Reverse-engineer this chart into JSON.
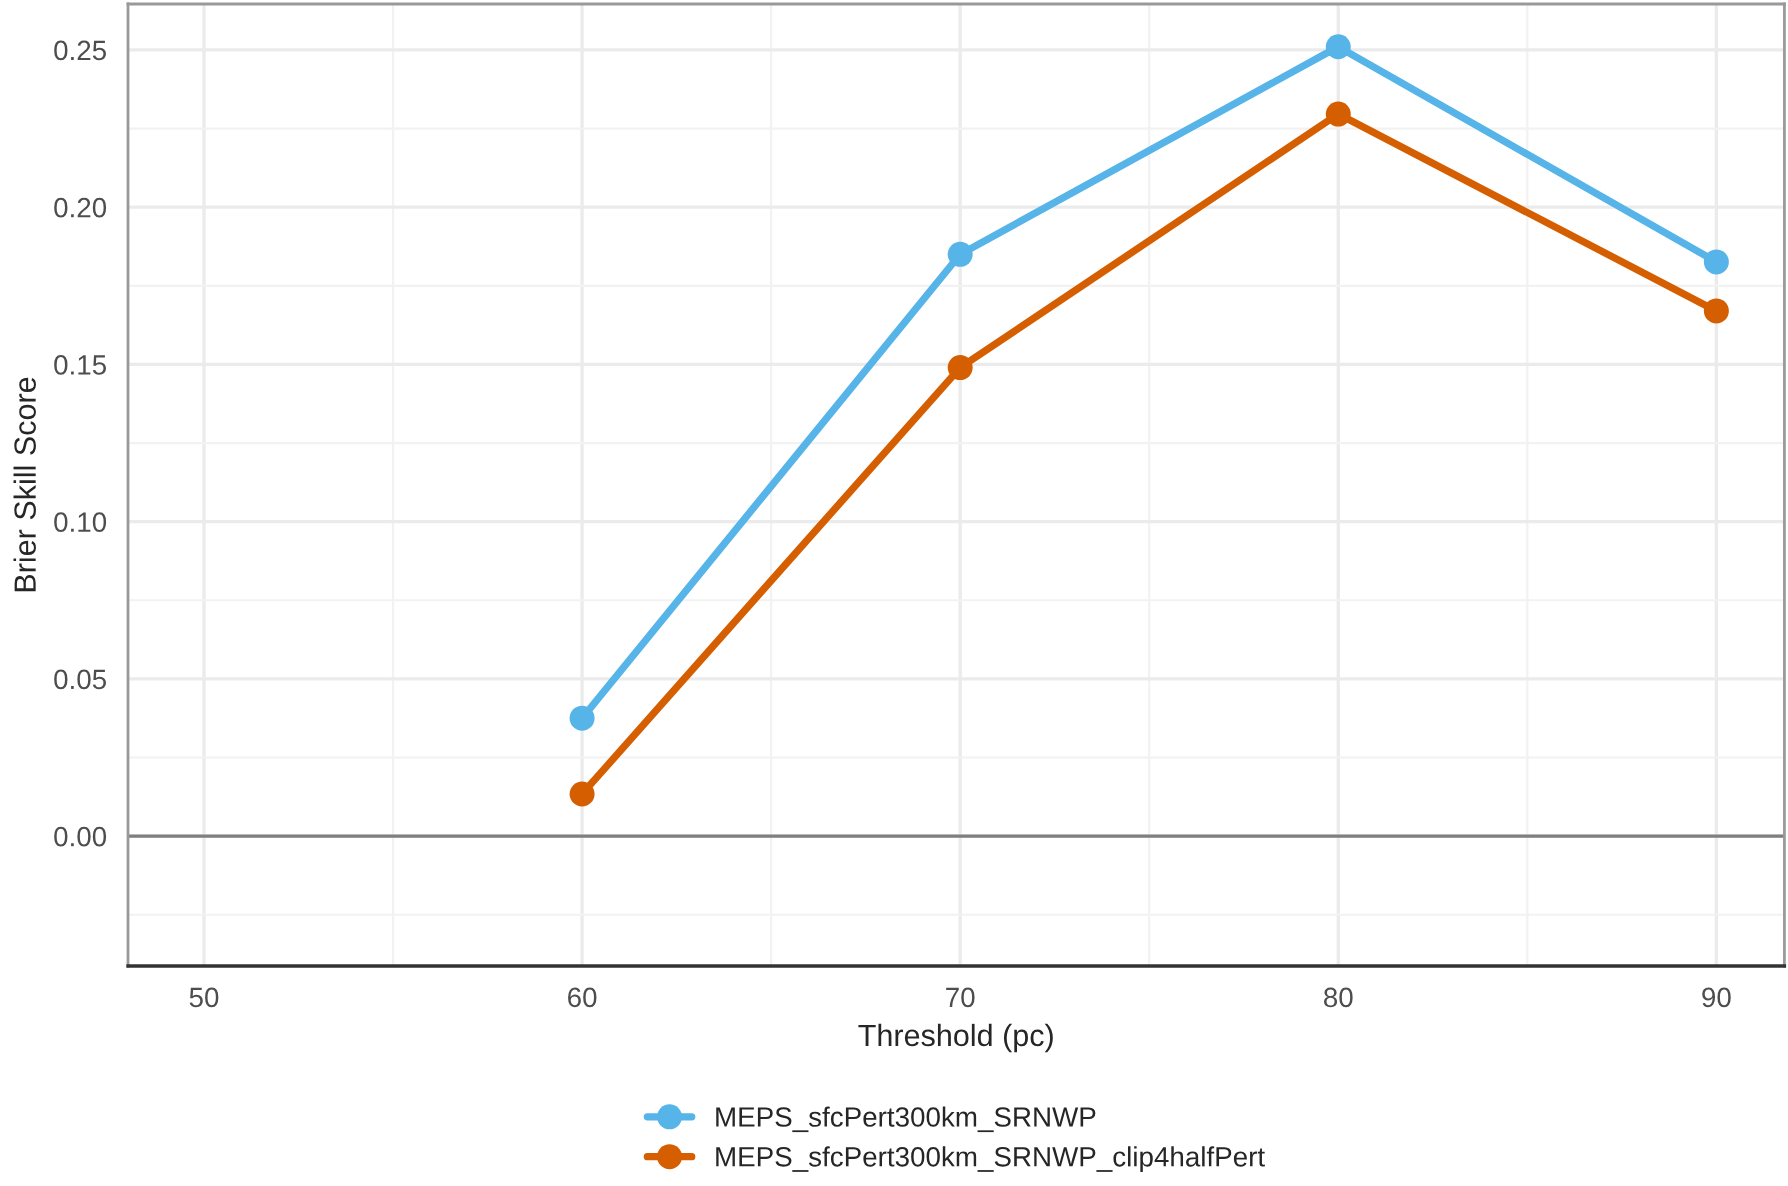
{
  "chart_data": {
    "type": "line",
    "xlabel": "Threshold (pc)",
    "ylabel": "Brier Skill Score",
    "x": [
      60,
      70,
      80,
      90
    ],
    "series": [
      {
        "name": "MEPS_sfcPert300km_SRNWP",
        "color": "#56b4e9",
        "values": [
          0.0375,
          0.185,
          0.251,
          0.1826
        ]
      },
      {
        "name": "MEPS_sfcPert300km_SRNWP_clip4halfPert",
        "color": "#d55e00",
        "values": [
          0.0134,
          0.149,
          0.2296,
          0.167
        ]
      }
    ],
    "xlim": [
      47.99,
      91.8
    ],
    "xticks": [
      50,
      60,
      70,
      80,
      90
    ],
    "ylim": [
      -0.0413,
      0.2646
    ],
    "yticks": [
      {
        "value": 0,
        "label": "0.00"
      },
      {
        "value": 0.05,
        "label": "0.05"
      },
      {
        "value": 0.1,
        "label": "0.10"
      },
      {
        "value": 0.15,
        "label": "0.15"
      },
      {
        "value": 0.2,
        "label": "0.20"
      },
      {
        "value": 0.25,
        "label": "0.25"
      }
    ],
    "ref_lines": [
      {
        "axis": "y",
        "value": 0,
        "color": "#7f7f7f"
      }
    ],
    "grid": true,
    "legend": "bottom",
    "marker": "circle",
    "line_style": "solid"
  }
}
